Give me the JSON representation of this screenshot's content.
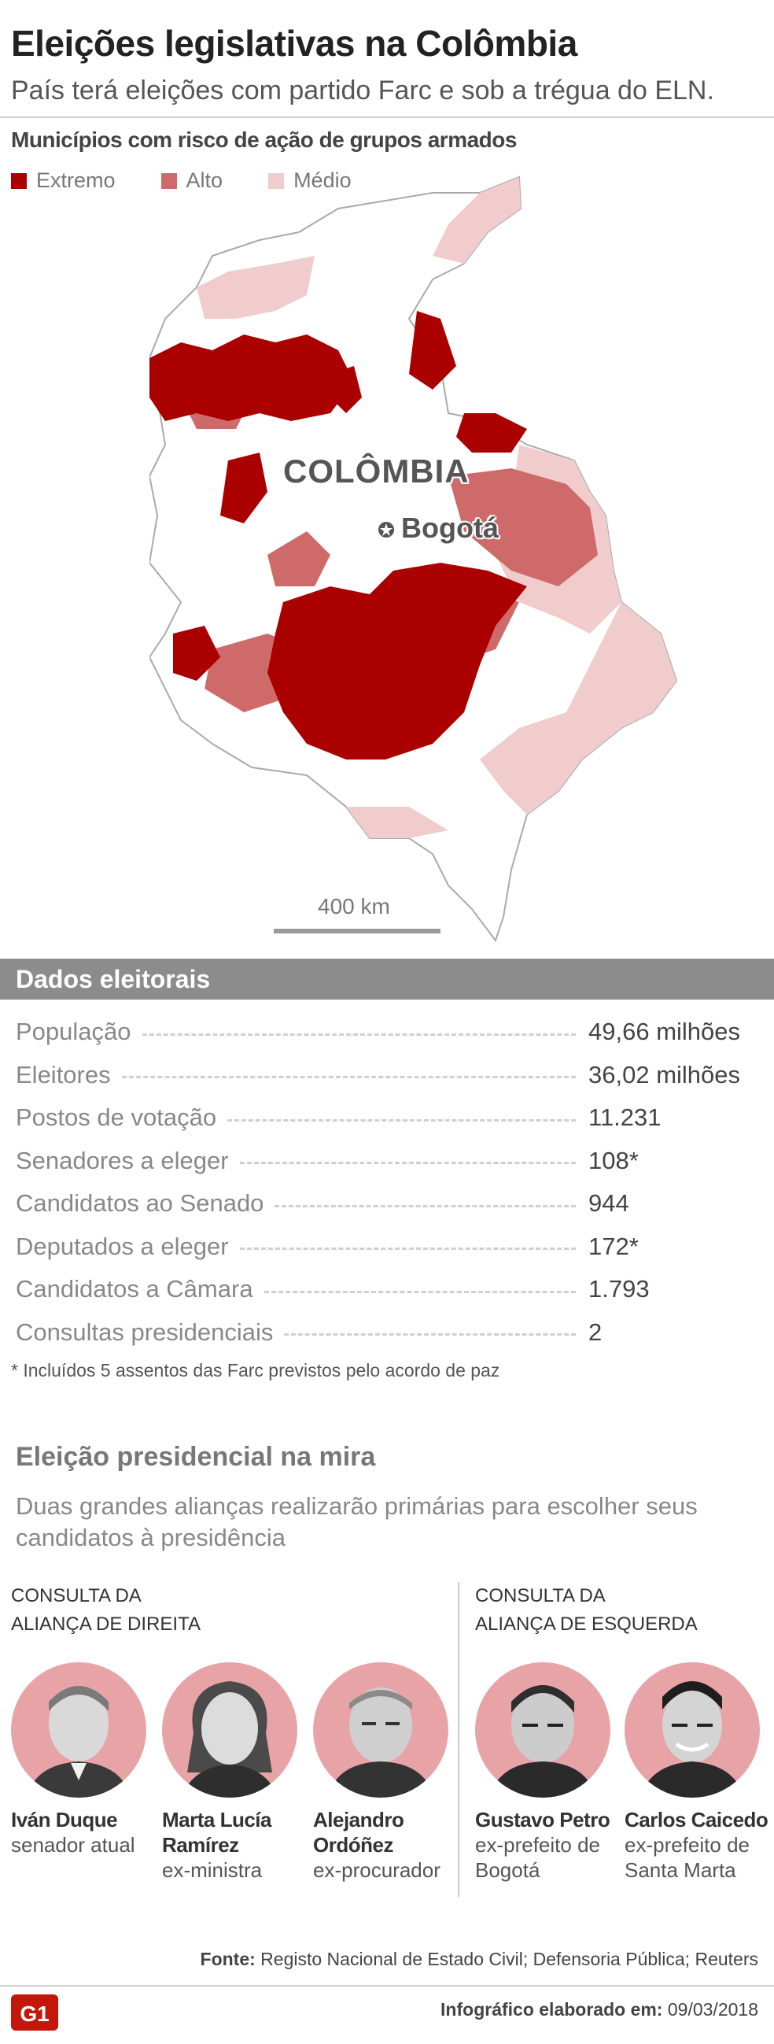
{
  "header": {
    "title": "Eleições legislativas na Colômbia",
    "subtitle": "País terá eleições com partido Farc e sob a trégua do ELN."
  },
  "map": {
    "title": "Municípios com risco de ação de grupos armados",
    "legend": [
      {
        "label": "Extremo",
        "color": "#aa0000"
      },
      {
        "label": "Alto",
        "color": "#cf6a6a"
      },
      {
        "label": "Médio",
        "color": "#f0cccd"
      }
    ],
    "country_label": "COLÔMBIA",
    "city_label": "Bogotá",
    "scale_label": "400 km"
  },
  "stats": {
    "title": "Dados eleitorais",
    "rows": [
      {
        "label": "População",
        "value": "49,66 milhões"
      },
      {
        "label": "Eleitores",
        "value": "36,02 milhões"
      },
      {
        "label": "Postos de votação",
        "value": "11.231"
      },
      {
        "label": "Senadores a eleger",
        "value": "108*"
      },
      {
        "label": "Candidatos ao Senado",
        "value": "944"
      },
      {
        "label": "Deputados a eleger",
        "value": "172*"
      },
      {
        "label": "Candidatos a Câmara",
        "value": "1.793"
      },
      {
        "label": "Consultas presidenciais",
        "value": "2"
      }
    ],
    "footnote": "* Incluídos 5 assentos das Farc previstos pelo acordo de paz"
  },
  "presidential": {
    "title": "Eleição presidencial na mira",
    "description": "Duas grandes alianças realizarão primárias para escolher seus candidatos à presidência",
    "right_coalition": {
      "title_line1": "Consulta da",
      "title_line2": "aliança de direita",
      "candidates": [
        {
          "name": "Iván Duque",
          "role": "senador atual"
        },
        {
          "name": "Marta Lucía Ramírez",
          "role": "ex-ministra"
        },
        {
          "name": "Alejandro Ordóñez",
          "role": "ex-procurador"
        }
      ]
    },
    "left_coalition": {
      "title_line1": "Consulta da",
      "title_line2": "aliança de esquerda",
      "candidates": [
        {
          "name": "Gustavo Petro",
          "role": "ex-prefeito de Bogotá"
        },
        {
          "name": "Carlos Caicedo",
          "role": "ex-prefeito de Santa Marta"
        }
      ]
    }
  },
  "footer": {
    "source_label": "Fonte:",
    "source_text": "Registo Nacional de Estado Civil; Defensoria Pública; Reuters",
    "credit_label": "Infográfico elaborado em:",
    "credit_date": "09/03/2018",
    "logo_text": "G1"
  }
}
